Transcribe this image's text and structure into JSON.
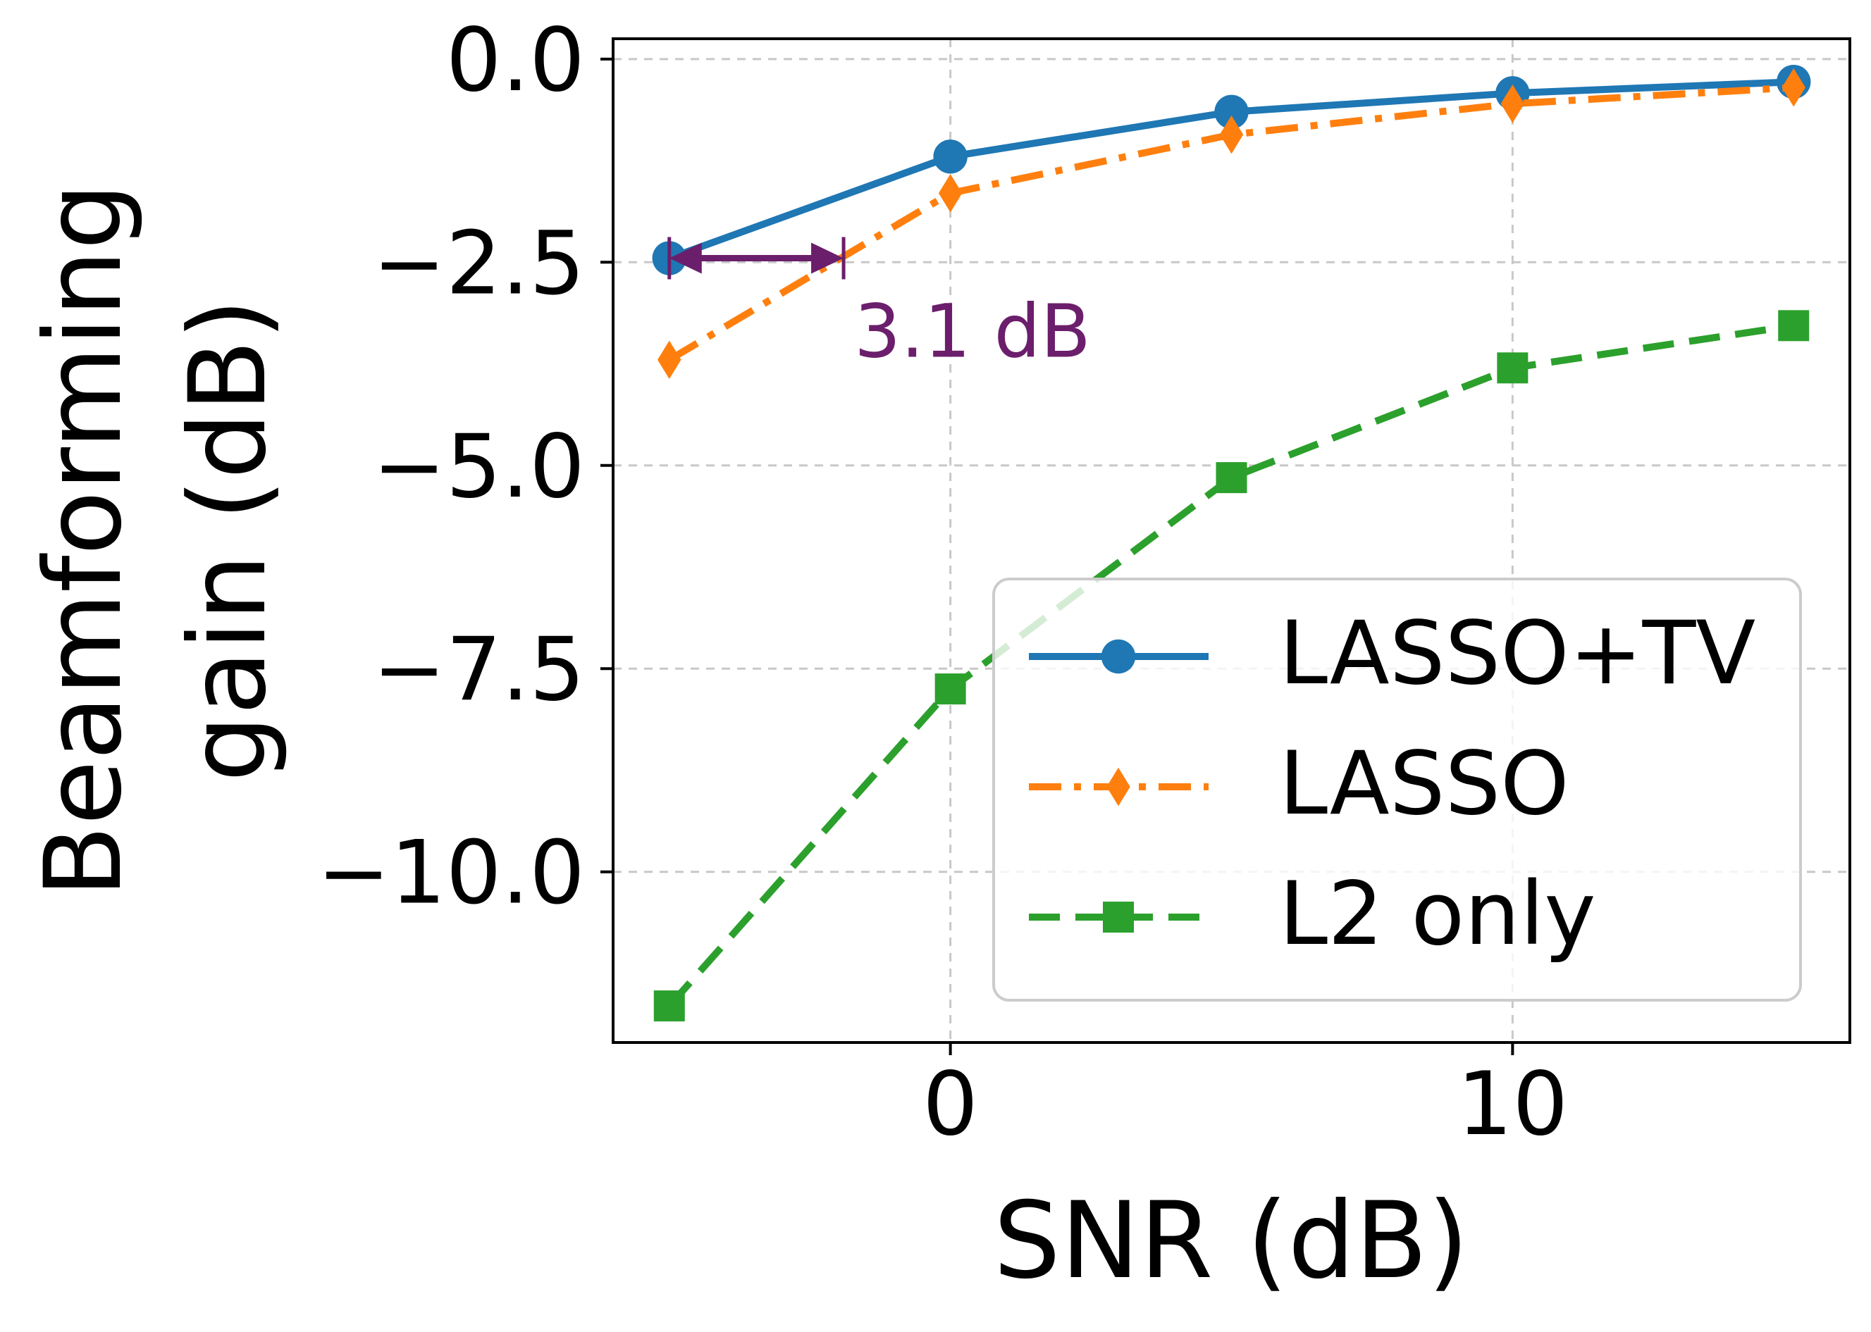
{
  "chart_data": {
    "type": "line",
    "xlabel": "SNR (dB)",
    "ylabel_lines": [
      "Beamforming",
      "gain (dB)"
    ],
    "xlim": [
      -6,
      16
    ],
    "ylim": [
      -12.1,
      0.25
    ],
    "xticks": [
      0,
      10
    ],
    "xtick_labels": [
      "0",
      "10"
    ],
    "yticks": [
      0.0,
      -2.5,
      -5.0,
      -7.5,
      -10.0
    ],
    "ytick_labels": [
      "0.0",
      "−2.5",
      "−5.0",
      "−7.5",
      "−10.0"
    ],
    "grid": true,
    "legend_position": "lower-right",
    "x": [
      -5,
      0,
      5,
      10,
      15
    ],
    "series": [
      {
        "name": "LASSO+TV",
        "values": [
          -2.45,
          -1.2,
          -0.65,
          -0.42,
          -0.28
        ],
        "color": "#1f77b4",
        "linestyle": "solid",
        "marker": "circle"
      },
      {
        "name": "LASSO",
        "values": [
          -3.7,
          -1.65,
          -0.93,
          -0.55,
          -0.35
        ],
        "color": "#ff7f0e",
        "linestyle": "dashdot",
        "marker": "diamond"
      },
      {
        "name": "L2 only",
        "values": [
          -11.65,
          -7.75,
          -5.15,
          -3.8,
          -3.28
        ],
        "color": "#2ca02c",
        "linestyle": "dashed",
        "marker": "square"
      }
    ],
    "annotation": {
      "text": "3.1 dB",
      "x_start": -5,
      "x_end": -1.9,
      "y": -2.45,
      "color": "#6b1e6b"
    }
  }
}
